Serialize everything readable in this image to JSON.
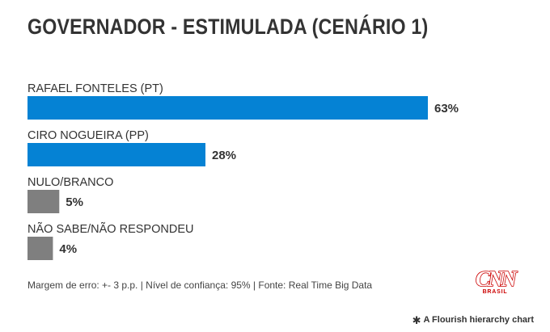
{
  "title": "GOVERNADOR - ESTIMULADA (CENÁRIO 1)",
  "footer": {
    "note": "Margem de erro: +- 3 p.p. | Nível de confiança: 95% | Fonte: Real Time Big Data",
    "logo_text": "CNN",
    "logo_subtext": "BRASIL",
    "credit": "A Flourish hierarchy chart",
    "credit_icon": "flourish-asterisk-icon"
  },
  "colors": {
    "candidate": "#0582d4",
    "other": "#7f7f7f",
    "text": "#333333",
    "brand_red": "#cc0000"
  },
  "chart_data": {
    "type": "bar",
    "orientation": "horizontal",
    "title": "GOVERNADOR - ESTIMULADA (CENÁRIO 1)",
    "categories": [
      "RAFAEL FONTELES (PT)",
      "CIRO NOGUEIRA (PP)",
      "NULO/BRANCO",
      "NÃO SABE/NÃO RESPONDEU"
    ],
    "values": [
      63,
      28,
      5,
      4
    ],
    "value_labels": [
      "63%",
      "28%",
      "5%",
      "4%"
    ],
    "bar_colors": [
      "#0582d4",
      "#0582d4",
      "#7f7f7f",
      "#7f7f7f"
    ],
    "xlim": [
      0,
      63
    ],
    "grid": false,
    "legend": "none"
  }
}
